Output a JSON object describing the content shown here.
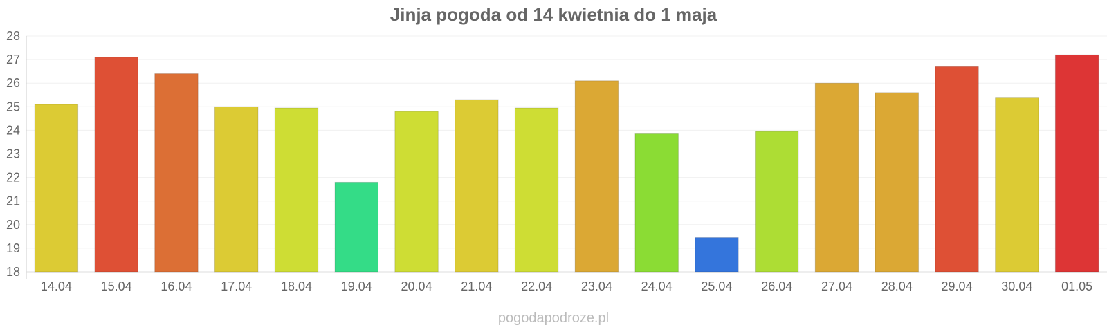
{
  "chart_data": {
    "type": "bar",
    "title": "Jinja pogoda od 14 kwietnia do 1 maja",
    "xlabel": "",
    "ylabel": "",
    "ylim": [
      18,
      28
    ],
    "yticks": [
      18,
      19,
      20,
      21,
      22,
      23,
      24,
      25,
      26,
      27,
      28
    ],
    "grid": true,
    "legend": false,
    "categories": [
      "14.04",
      "15.04",
      "16.04",
      "17.04",
      "18.04",
      "19.04",
      "20.04",
      "21.04",
      "22.04",
      "23.04",
      "24.04",
      "25.04",
      "26.04",
      "27.04",
      "28.04",
      "29.04",
      "30.04",
      "01.05"
    ],
    "values": [
      25.1,
      27.1,
      26.4,
      25.0,
      24.95,
      21.8,
      24.8,
      25.3,
      24.95,
      26.1,
      23.85,
      19.45,
      23.95,
      26.0,
      25.6,
      26.7,
      25.4,
      27.2
    ],
    "colors": [
      "#dccb34",
      "#de5035",
      "#dc6f35",
      "#dccb34",
      "#cedd34",
      "#34dc87",
      "#cedd34",
      "#dccb34",
      "#cedd34",
      "#dba834",
      "#8bdc34",
      "#3475dc",
      "#addd34",
      "#dba834",
      "#dba834",
      "#de5035",
      "#dccb34",
      "#dd3535"
    ]
  },
  "watermark": "pogodapodroze.pl"
}
